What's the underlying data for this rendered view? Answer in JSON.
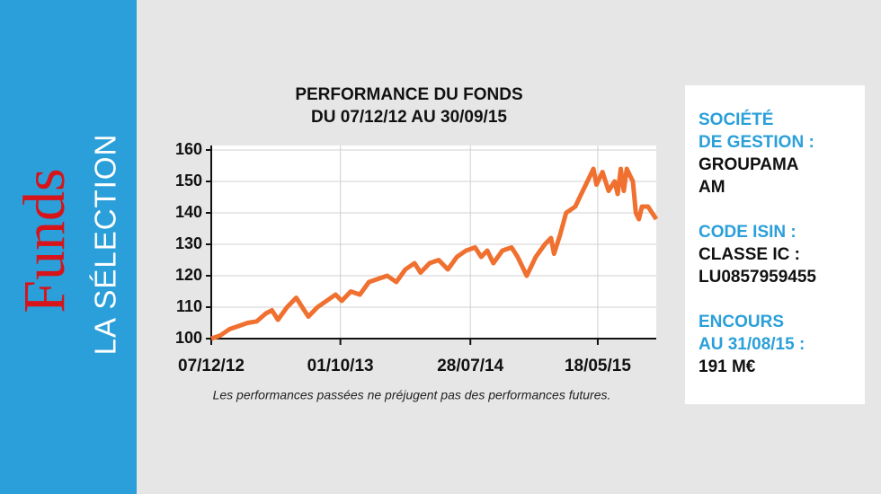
{
  "brand": {
    "name": "Funds",
    "section": "LA SÉLECTION"
  },
  "chart_data": {
    "type": "line",
    "title": "PERFORMANCE DU FONDS",
    "subtitle": "DU 07/12/12 AU 30/09/15",
    "note": "Les performances passées ne préjugent pas des performances futures.",
    "x": [
      "2012-12-07",
      "2012-12-28",
      "2013-01-18",
      "2013-02-08",
      "2013-03-01",
      "2013-03-22",
      "2013-04-12",
      "2013-04-26",
      "2013-05-10",
      "2013-05-31",
      "2013-06-21",
      "2013-07-05",
      "2013-07-19",
      "2013-08-09",
      "2013-08-30",
      "2013-09-20",
      "2013-10-04",
      "2013-10-25",
      "2013-11-15",
      "2013-12-06",
      "2013-12-27",
      "2014-01-17",
      "2014-02-07",
      "2014-02-28",
      "2014-03-21",
      "2014-04-04",
      "2014-04-25",
      "2014-05-16",
      "2014-06-06",
      "2014-06-27",
      "2014-07-18",
      "2014-08-08",
      "2014-08-22",
      "2014-09-05",
      "2014-09-19",
      "2014-10-10",
      "2014-10-31",
      "2014-11-14",
      "2014-12-05",
      "2014-12-26",
      "2015-01-16",
      "2015-01-30",
      "2015-02-06",
      "2015-02-20",
      "2015-03-06",
      "2015-03-27",
      "2015-04-10",
      "2015-04-24",
      "2015-05-08",
      "2015-05-15",
      "2015-05-29",
      "2015-06-12",
      "2015-06-26",
      "2015-07-03",
      "2015-07-10",
      "2015-07-17",
      "2015-07-24",
      "2015-07-31",
      "2015-08-07",
      "2015-08-14",
      "2015-08-21",
      "2015-08-28",
      "2015-09-11",
      "2015-09-30"
    ],
    "series": [
      {
        "name": "Performance",
        "color": "#f07030",
        "values": [
          100,
          101,
          103,
          104,
          105,
          105.5,
          108,
          109,
          106,
          110,
          113,
          110,
          107,
          110,
          112,
          114,
          112,
          115,
          114,
          118,
          119,
          120,
          118,
          122,
          124,
          121,
          124,
          125,
          122,
          126,
          128,
          129,
          126,
          128,
          124,
          128,
          129,
          126,
          120,
          126,
          130,
          132,
          127,
          133,
          140,
          142,
          146,
          150,
          154,
          149,
          153,
          147,
          150,
          146,
          154,
          147,
          154,
          152,
          150,
          140,
          138,
          142,
          142,
          138
        ]
      }
    ],
    "xlim": [
      "2012-12-07",
      "2015-09-30"
    ],
    "xticks": [
      {
        "value": "2012-12-07",
        "label": "07/12/12"
      },
      {
        "value": "2013-10-01",
        "label": "01/10/13"
      },
      {
        "value": "2014-07-28",
        "label": "28/07/14"
      },
      {
        "value": "2015-05-18",
        "label": "18/05/15"
      }
    ],
    "ylim": [
      100,
      160
    ],
    "yticks": [
      100,
      110,
      120,
      130,
      140,
      150,
      160
    ],
    "grid": true
  },
  "info": [
    {
      "label": [
        "SOCIÉTÉ",
        "DE GESTION :"
      ],
      "value": [
        "GROUPAMA",
        "AM"
      ]
    },
    {
      "label": [
        "CODE ISIN :"
      ],
      "value": [
        "CLASSE IC :",
        "LU0857959455"
      ]
    },
    {
      "label": [
        "ENCOURS",
        "AU 31/08/15 :"
      ],
      "value": [
        "191 M€"
      ]
    }
  ]
}
